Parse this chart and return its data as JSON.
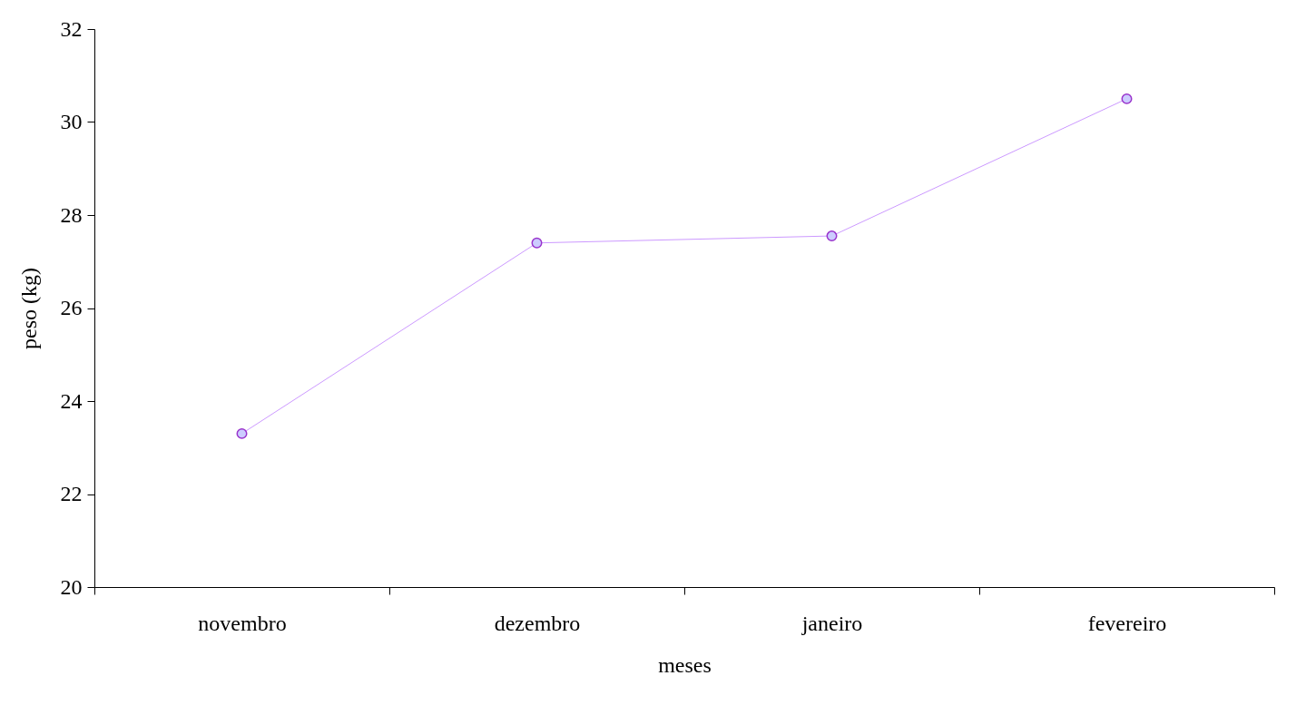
{
  "chart_data": {
    "type": "line",
    "xlabel": "meses",
    "ylabel": "peso (kg)",
    "categories": [
      "novembro",
      "dezembro",
      "janeiro",
      "fevereiro"
    ],
    "series": [
      {
        "color": "#cc99ff",
        "values": [
          23.3,
          27.4,
          27.55,
          30.5
        ]
      }
    ],
    "ylim": [
      20,
      32
    ],
    "yticks": [
      20,
      22,
      24,
      26,
      28,
      30,
      32
    ],
    "grid": false,
    "marker": "circle",
    "line_style": "solid"
  }
}
